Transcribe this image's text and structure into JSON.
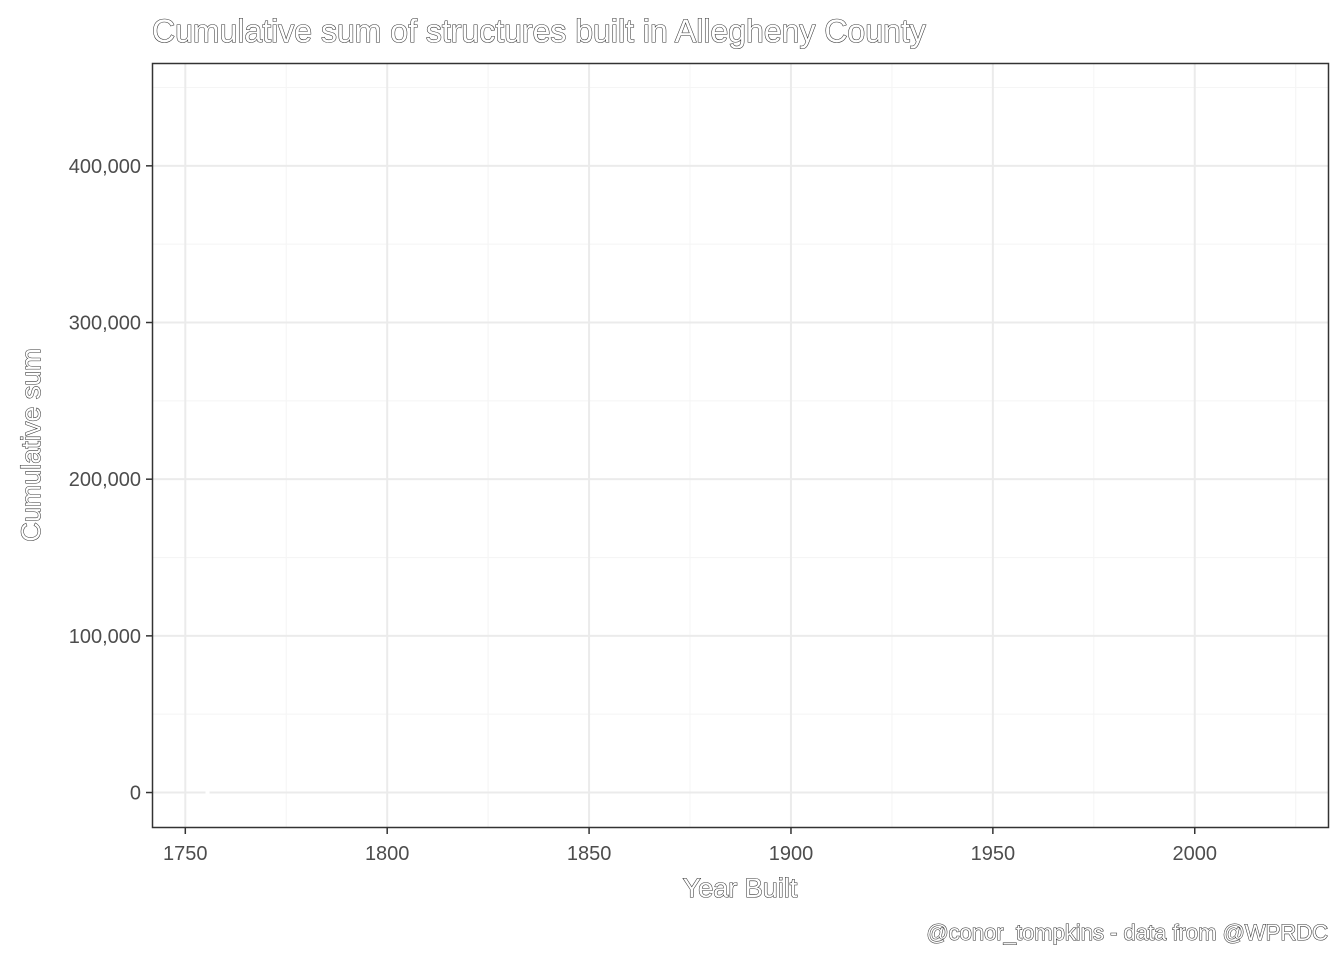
{
  "chart_data": {
    "type": "line",
    "title": "Cumulative sum of structures built in Allegheny County",
    "xlabel": "Year Built",
    "ylabel": "Cumulative sum",
    "caption": "@conor_tompkins - data from @WPRDC",
    "xlim": [
      1742,
      2033
    ],
    "ylim": [
      -22000,
      465000
    ],
    "x_ticks": [
      1750,
      1800,
      1850,
      1900,
      1950,
      2000
    ],
    "x_tick_labels": [
      "1750",
      "1800",
      "1850",
      "1900",
      "1950",
      "2000"
    ],
    "y_ticks": [
      0,
      100000,
      200000,
      300000,
      400000
    ],
    "y_tick_labels": [
      "0",
      "100,000",
      "200,000",
      "300,000",
      "400,000"
    ],
    "grid": true,
    "series": [
      {
        "color": "#ffffff",
        "points": [
          {
            "x": 1755,
            "y": 0
          },
          {
            "x": 1756,
            "y": 0
          }
        ]
      }
    ]
  },
  "colors": {
    "background": "#ffffff",
    "panel_border": "#333333",
    "grid_major": "#ebebeb",
    "grid_minor": "#f5f5f5",
    "tick_text": "#4d4d4d"
  }
}
